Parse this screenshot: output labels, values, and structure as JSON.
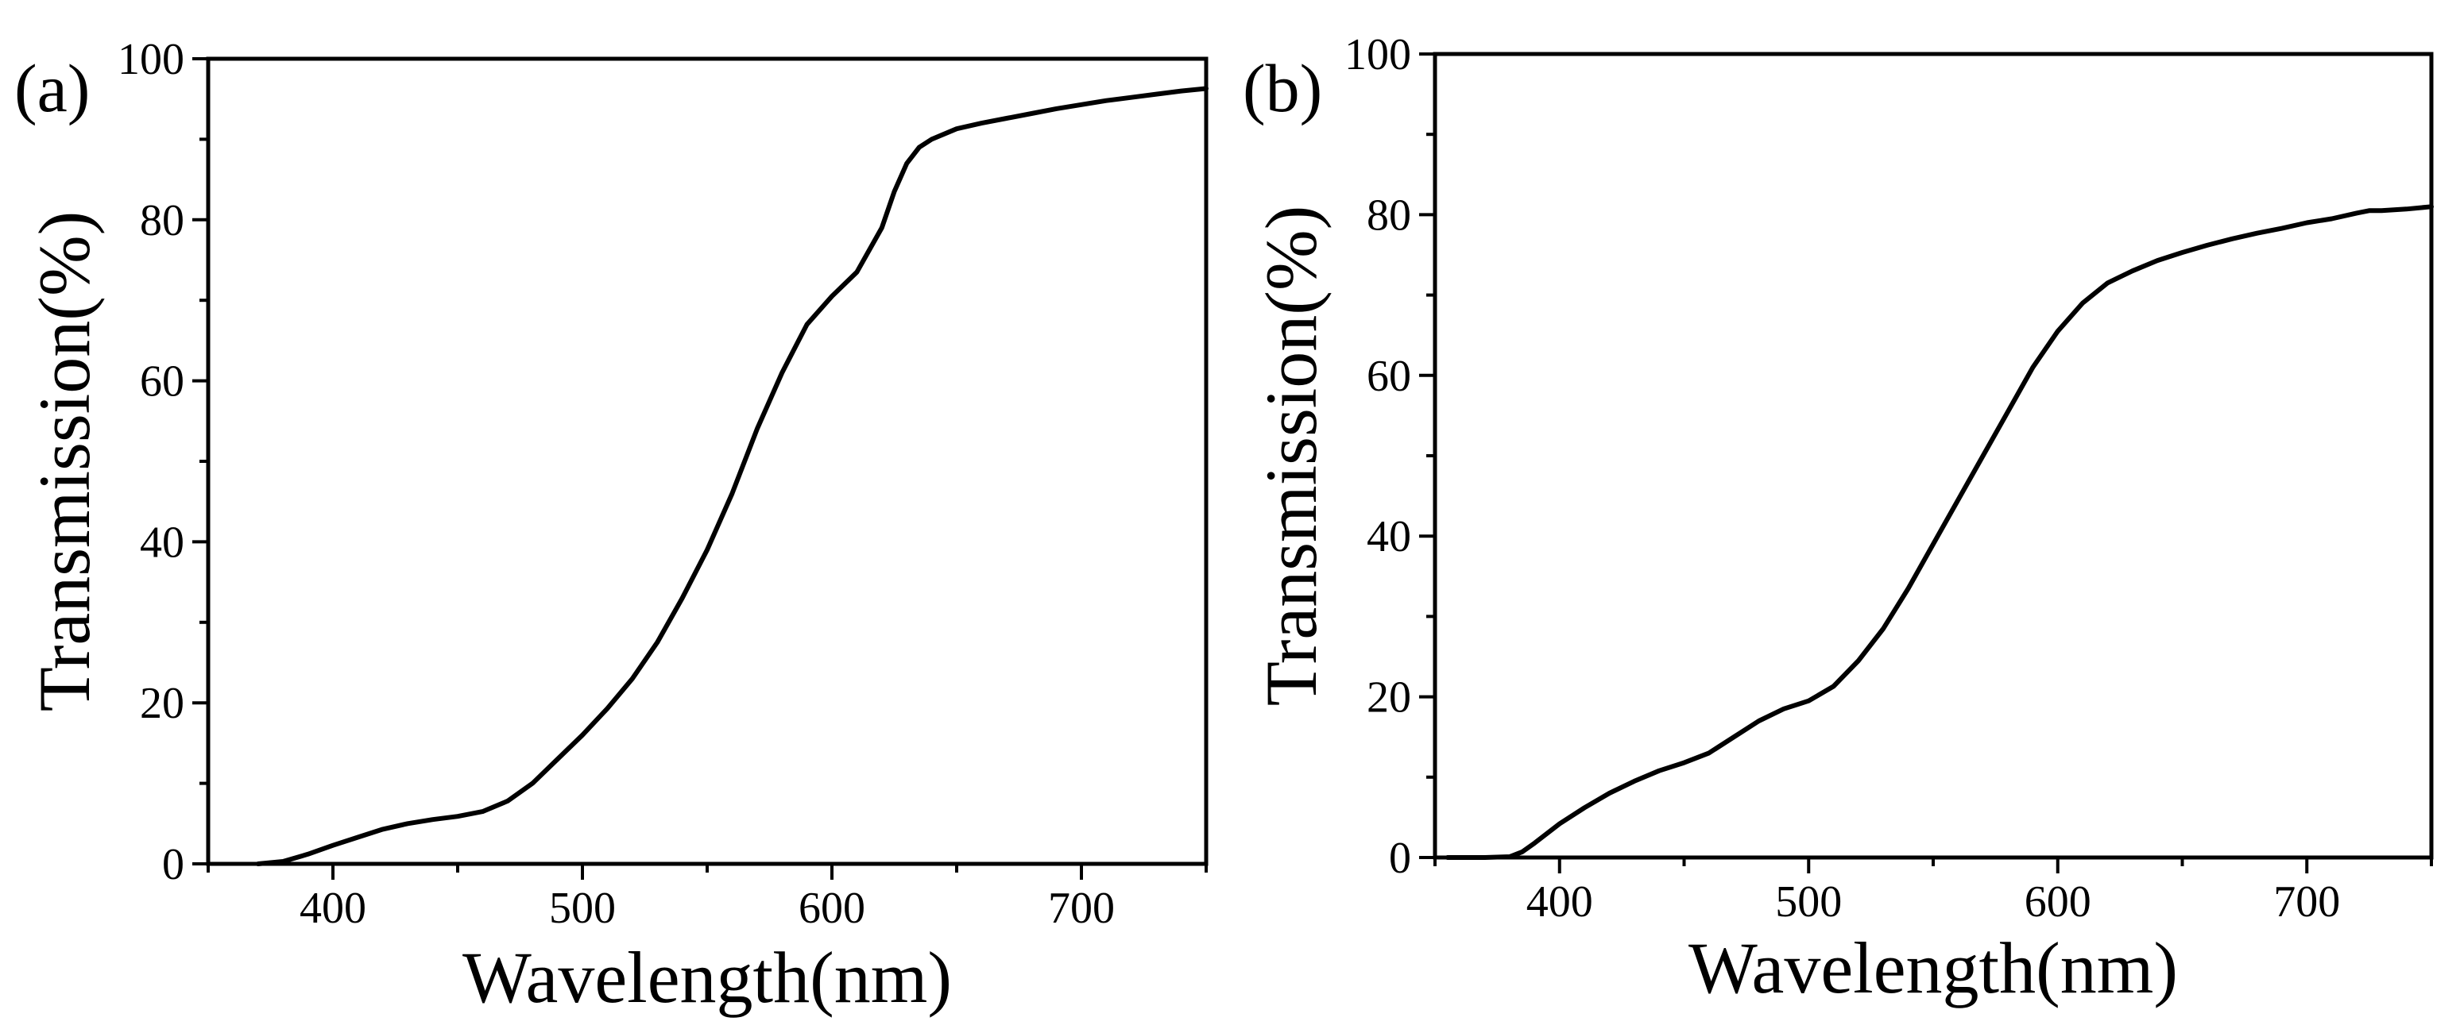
{
  "chart_data": [
    {
      "type": "line",
      "panel_label": "(a)",
      "xlabel": "Wavelength(nm)",
      "ylabel": "Transmission(%)",
      "xlim": [
        350,
        750
      ],
      "ylim": [
        0,
        100
      ],
      "xticks": [
        400,
        500,
        600,
        700
      ],
      "yticks": [
        0,
        20,
        40,
        60,
        80,
        100
      ],
      "xtick_labels": [
        "400",
        "500",
        "600",
        "700"
      ],
      "ytick_labels": [
        "0",
        "20",
        "40",
        "60",
        "80",
        "100"
      ],
      "grid": false,
      "series": [
        {
          "name": "Transmission",
          "x": [
            370,
            380,
            390,
            400,
            410,
            420,
            430,
            440,
            450,
            460,
            470,
            480,
            490,
            500,
            510,
            520,
            530,
            540,
            550,
            560,
            570,
            580,
            585,
            590,
            600,
            610,
            620,
            625,
            630,
            635,
            640,
            650,
            660,
            670,
            680,
            690,
            700,
            710,
            720,
            730,
            740,
            750
          ],
          "y": [
            0.0,
            0.3,
            1.2,
            2.3,
            3.3,
            4.3,
            5.0,
            5.5,
            5.9,
            6.5,
            7.8,
            10.0,
            13.0,
            16.0,
            19.3,
            23.0,
            27.5,
            33.0,
            39.0,
            46.0,
            54.0,
            61.0,
            64.0,
            67.0,
            70.5,
            73.5,
            79.0,
            83.5,
            87.0,
            89.0,
            90.0,
            91.3,
            92.0,
            92.6,
            93.2,
            93.8,
            94.3,
            94.8,
            95.2,
            95.6,
            96.0,
            96.3
          ]
        }
      ]
    },
    {
      "type": "line",
      "panel_label": "(b)",
      "xlabel": "Wavelength(nm)",
      "ylabel": "Transmission(%)",
      "xlim": [
        350,
        750
      ],
      "ylim": [
        0,
        100
      ],
      "xticks": [
        400,
        500,
        600,
        700
      ],
      "yticks": [
        0,
        20,
        40,
        60,
        80,
        100
      ],
      "xtick_labels": [
        "400",
        "500",
        "600",
        "700"
      ],
      "ytick_labels": [
        "0",
        "20",
        "40",
        "60",
        "80",
        "100"
      ],
      "grid": false,
      "series": [
        {
          "name": "Transmission",
          "x": [
            355,
            370,
            380,
            385,
            390,
            400,
            410,
            420,
            430,
            440,
            450,
            460,
            470,
            480,
            490,
            500,
            510,
            520,
            530,
            540,
            550,
            560,
            570,
            580,
            590,
            600,
            610,
            620,
            630,
            640,
            650,
            660,
            670,
            680,
            690,
            700,
            710,
            720,
            725,
            730,
            740,
            750
          ],
          "y": [
            0.0,
            0.0,
            0.1,
            0.7,
            1.8,
            4.2,
            6.2,
            8.0,
            9.5,
            10.8,
            11.8,
            13.0,
            15.0,
            17.0,
            18.5,
            19.5,
            21.3,
            24.5,
            28.5,
            33.5,
            39.0,
            44.5,
            50.0,
            55.5,
            61.0,
            65.5,
            69.0,
            71.5,
            73.0,
            74.3,
            75.3,
            76.2,
            77.0,
            77.7,
            78.3,
            79.0,
            79.5,
            80.2,
            80.5,
            80.5,
            80.7,
            81.0
          ]
        }
      ]
    }
  ]
}
